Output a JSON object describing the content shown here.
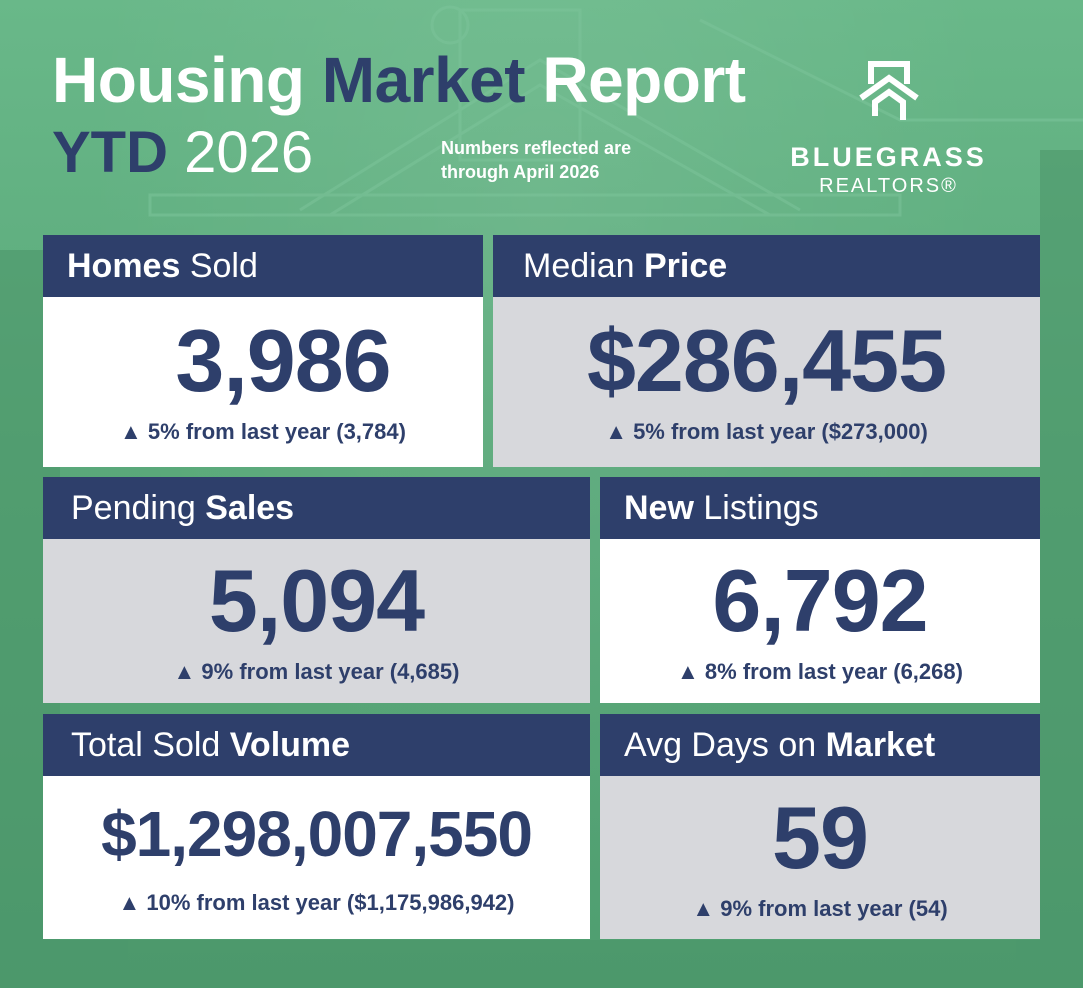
{
  "header": {
    "title_a": "Housing",
    "title_b": "Market",
    "title_c": "Report",
    "sub_a": "YTD",
    "sub_b": "2026",
    "note_line1": "Numbers reflected are",
    "note_line2": "through April 2026"
  },
  "logo": {
    "line1": "BLUEGRASS",
    "line2": "REALTORS®"
  },
  "cards": {
    "homes_sold": {
      "h_bold": "Homes",
      "h_rest": " Sold",
      "value": "3,986",
      "change": "▲ 5% from last year (3,784)"
    },
    "median_price": {
      "h_rest": "Median ",
      "h_bold": "Price",
      "value": "$286,455",
      "change": "▲ 5% from last year ($273,000)"
    },
    "pending_sales": {
      "h_rest": "Pending ",
      "h_bold": "Sales",
      "value": "5,094",
      "change": "▲ 9% from last year (4,685)"
    },
    "new_listings": {
      "h_bold": "New",
      "h_rest": " Listings",
      "value": "6,792",
      "change": "▲ 8% from last year (6,268)"
    },
    "total_volume": {
      "h_rest": "Total Sold ",
      "h_bold": "Volume",
      "value": "$1,298,007,550",
      "change": "▲ 10% from last year ($1,175,986,942)"
    },
    "avg_days": {
      "h_rest": "Avg Days on ",
      "h_bold": "Market",
      "value": "59",
      "change": "▲ 9% from last year (54)"
    }
  },
  "colors": {
    "navy": "#2e3f6b",
    "green": "#5aa97a",
    "gray_card": "#d7d8dc"
  }
}
